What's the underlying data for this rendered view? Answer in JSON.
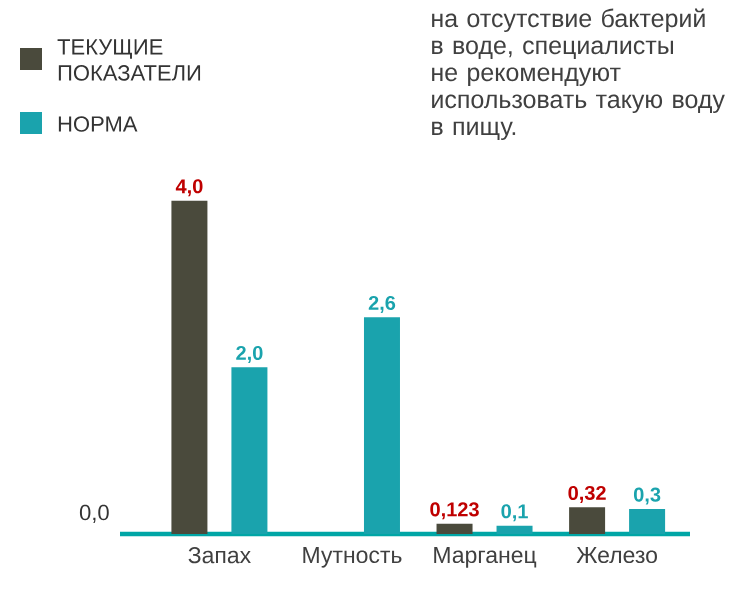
{
  "chart_data": {
    "type": "bar",
    "categories": [
      "Запах",
      "Мутность",
      "Марганец",
      "Железо"
    ],
    "series": [
      {
        "name": "ТЕКУЩИЕ ПОКАЗАТЕЛИ",
        "color": "#4a4a3c",
        "values": [
          4.0,
          null,
          0.123,
          0.32
        ],
        "value_labels": [
          "4,0",
          null,
          "0,123",
          "0,32"
        ]
      },
      {
        "name": "НОРМА",
        "color": "#1aa3ad",
        "values": [
          2.0,
          2.6,
          0.1,
          0.3
        ],
        "value_labels": [
          "2,0",
          "2,6",
          "0,1",
          "0,3"
        ]
      }
    ],
    "legend": "top left",
    "annotations": [
      "0,0",
      "на отсутствие бактерий в воде, специалисты не рекомендуют использовать такую воду в пищу."
    ]
  }
}
